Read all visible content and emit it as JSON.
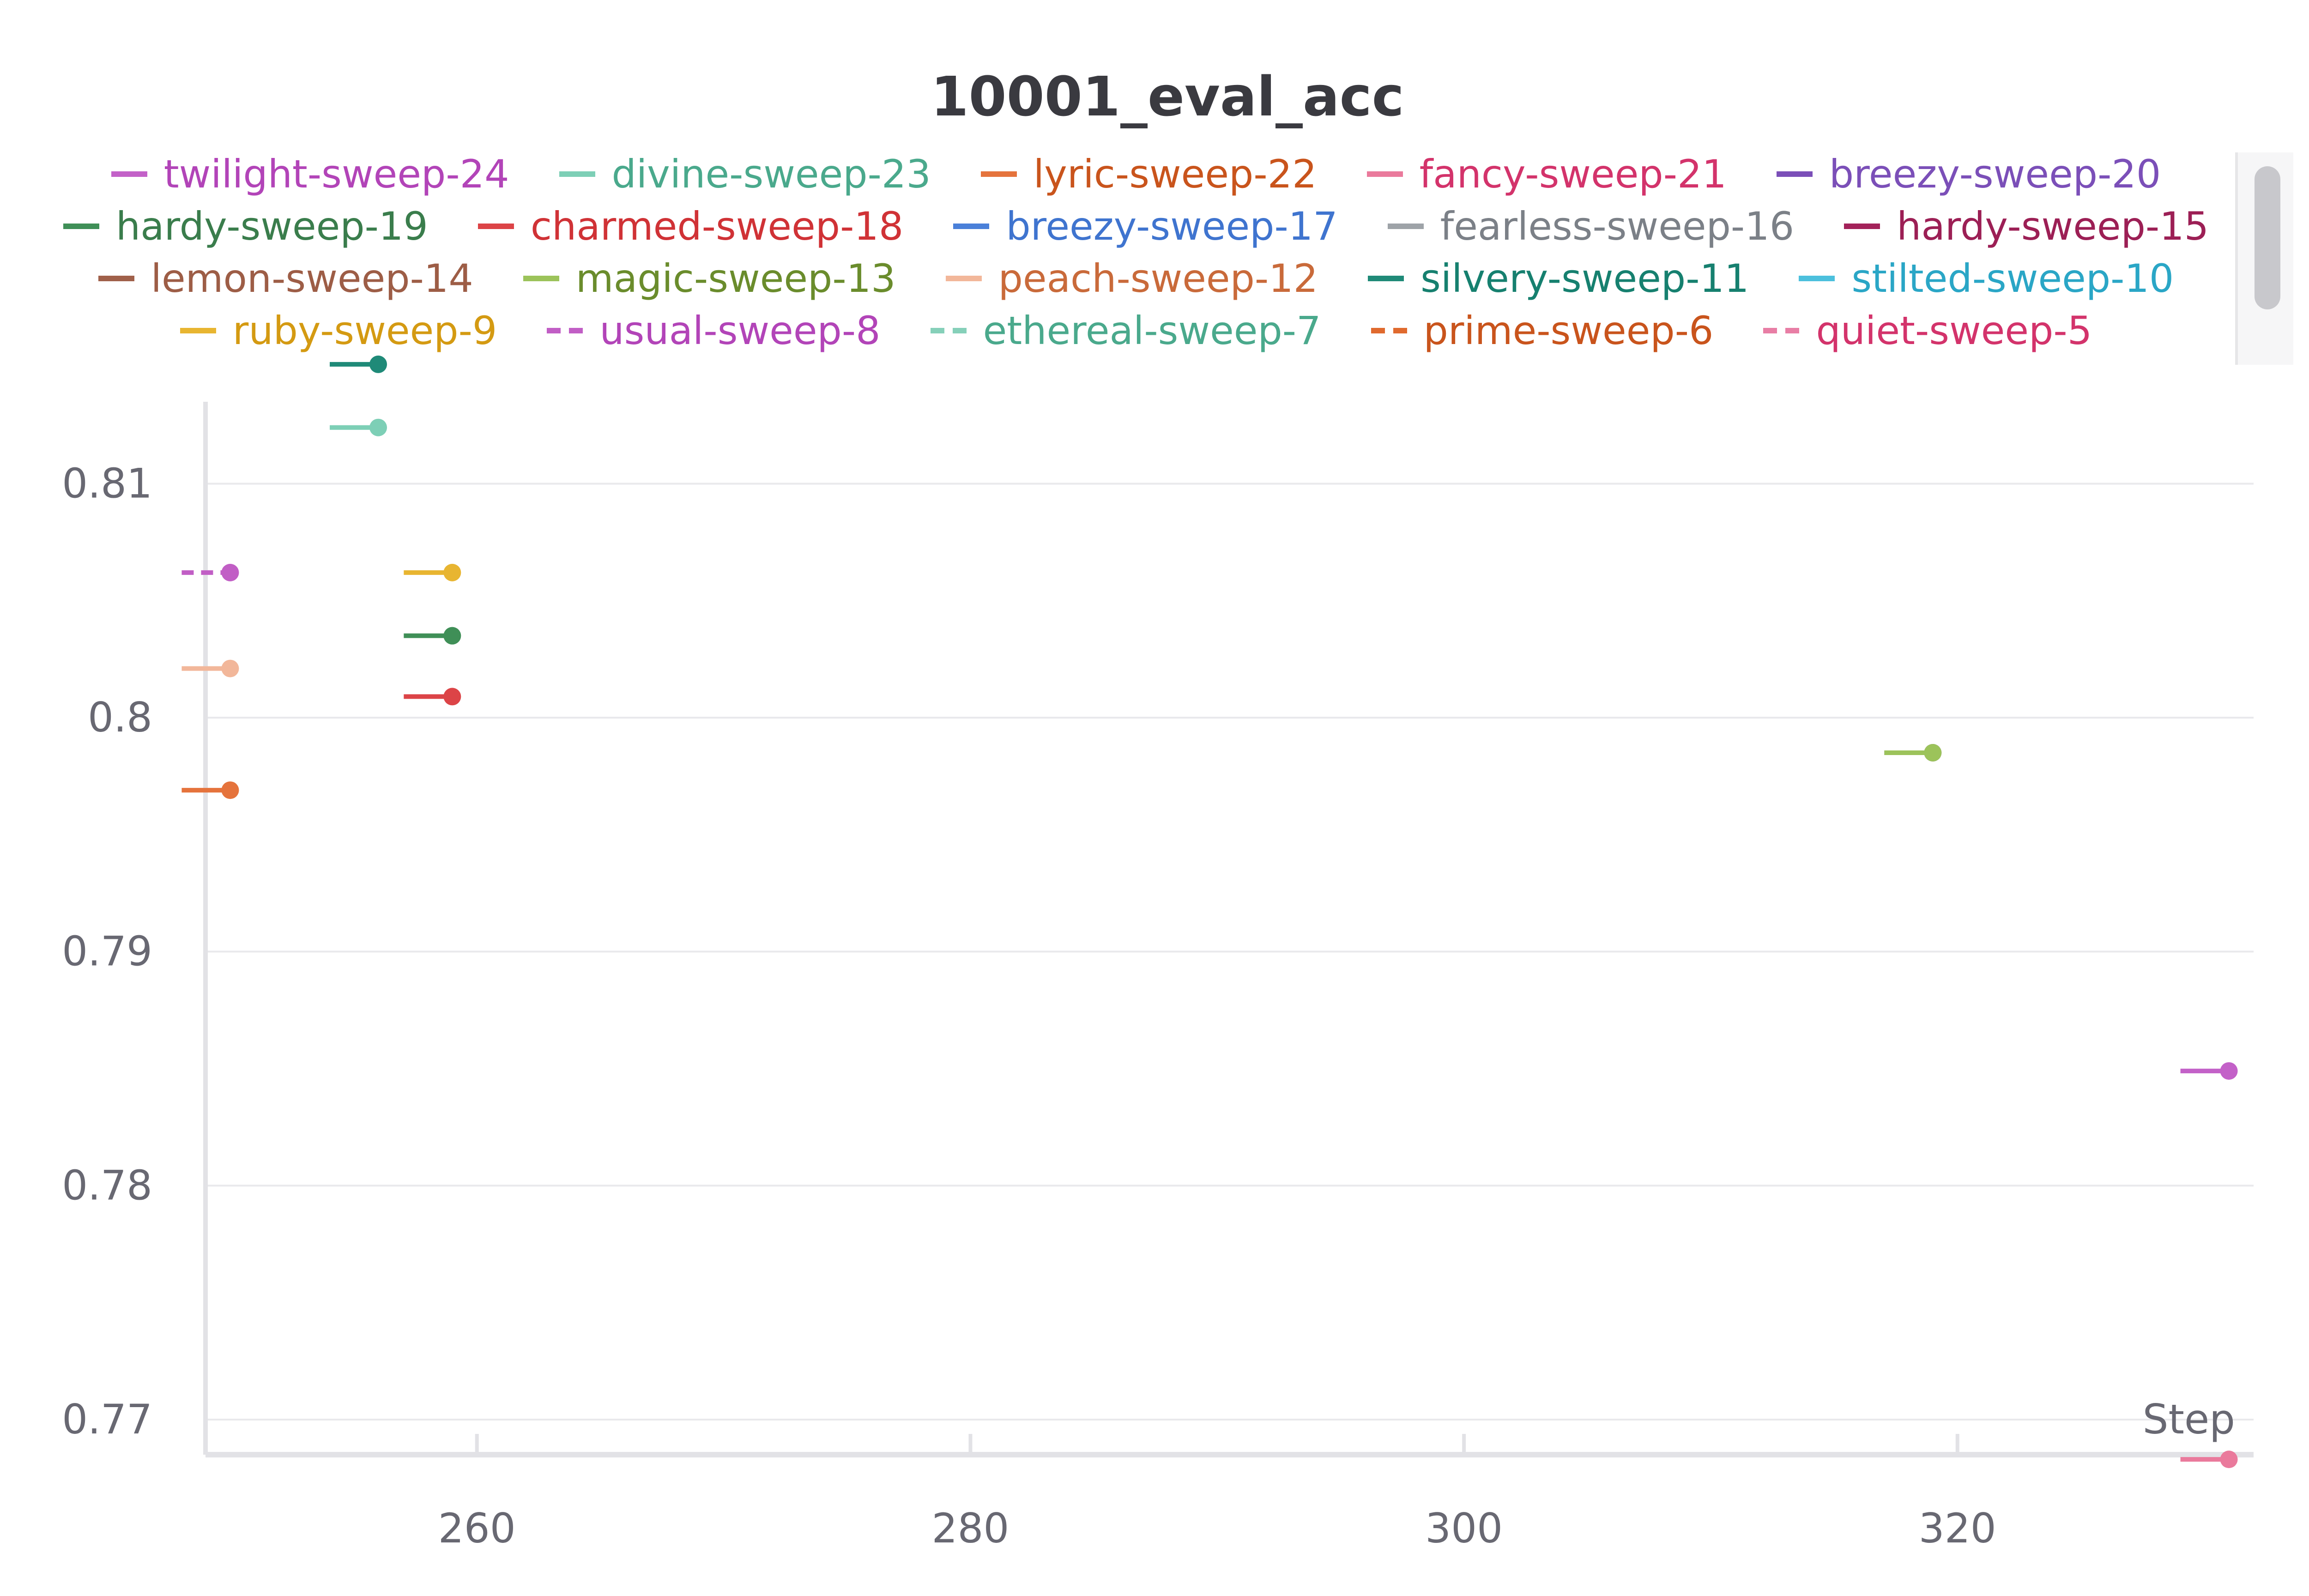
{
  "chart_data": {
    "type": "line",
    "title": "10001_eval_acc",
    "xlabel": "Step",
    "ylabel": "",
    "xlim": [
      249,
      332
    ],
    "ylim": [
      0.7685,
      0.8135
    ],
    "xticks": [
      260,
      280,
      300,
      320
    ],
    "yticks": [
      0.77,
      0.78,
      0.79,
      0.8,
      0.81
    ],
    "ytick_labels": [
      "0.77",
      "0.78",
      "0.79",
      "0.8",
      "0.81"
    ],
    "grid": true,
    "legend_position": "top",
    "series": [
      {
        "name": "twilight-sweep-24",
        "color": "#c361c8",
        "dash": false,
        "x": [
          331
        ],
        "y": [
          0.7849
        ]
      },
      {
        "name": "divine-sweep-23",
        "color": "#7dcfb6",
        "dash": false,
        "x": [
          256
        ],
        "y": [
          0.8124
        ]
      },
      {
        "name": "lyric-sweep-22",
        "color": "#e5733c",
        "dash": false,
        "x": [
          250
        ],
        "y": [
          0.7969
        ]
      },
      {
        "name": "fancy-sweep-21",
        "color": "#ea7a9c",
        "dash": false,
        "x": [
          331
        ],
        "y": [
          0.7683
        ]
      },
      {
        "name": "breezy-sweep-20",
        "color": "#7b4fb8",
        "dash": false,
        "x": [
          319
        ],
        "y": [
          0.7985
        ]
      },
      {
        "name": "hardy-sweep-19",
        "color": "#3f8f57",
        "dash": false,
        "x": [
          259
        ],
        "y": [
          0.8035
        ]
      },
      {
        "name": "charmed-sweep-18",
        "color": "#dc4447",
        "dash": false,
        "x": [
          259
        ],
        "y": [
          0.8009
        ]
      },
      {
        "name": "breezy-sweep-17",
        "color": "#4a80d9",
        "dash": false,
        "x": [],
        "y": []
      },
      {
        "name": "fearless-sweep-16",
        "color": "#9ea3a8",
        "dash": false,
        "x": [],
        "y": []
      },
      {
        "name": "hardy-sweep-15",
        "color": "#a3225a",
        "dash": false,
        "x": [],
        "y": []
      },
      {
        "name": "lemon-sweep-14",
        "color": "#a0604a",
        "dash": false,
        "x": [],
        "y": []
      },
      {
        "name": "magic-sweep-13",
        "color": "#9cc35a",
        "dash": false,
        "x": [
          319
        ],
        "y": [
          0.7985
        ]
      },
      {
        "name": "peach-sweep-12",
        "color": "#f2b79a",
        "dash": false,
        "x": [
          250
        ],
        "y": [
          0.8021
        ]
      },
      {
        "name": "silvery-sweep-11",
        "color": "#1f8a78",
        "dash": false,
        "x": [
          256
        ],
        "y": [
          0.8151
        ]
      },
      {
        "name": "stilted-sweep-10",
        "color": "#4cc0dd",
        "dash": false,
        "x": [],
        "y": []
      },
      {
        "name": "ruby-sweep-9",
        "color": "#e8b531",
        "dash": false,
        "x": [
          259
        ],
        "y": [
          0.8062
        ]
      },
      {
        "name": "usual-sweep-8",
        "color": "#c15ec5",
        "dash": true,
        "x": [
          250
        ],
        "y": [
          0.8062
        ]
      },
      {
        "name": "ethereal-sweep-7",
        "color": "#86d0b9",
        "dash": true,
        "x": [],
        "y": []
      },
      {
        "name": "prime-sweep-6",
        "color": "#e06a2e",
        "dash": true,
        "x": [],
        "y": []
      },
      {
        "name": "quiet-sweep-5",
        "color": "#e87ea5",
        "dash": true,
        "x": [],
        "y": []
      }
    ]
  },
  "legend_rows": [
    [
      {
        "label": "twilight-sweep-24",
        "color": "#c361c8",
        "text_color": "#b244b8",
        "dash": false
      },
      {
        "label": "divine-sweep-23",
        "color": "#7dcfb6",
        "text_color": "#4aa98c",
        "dash": false
      },
      {
        "label": "lyric-sweep-22",
        "color": "#e5733c",
        "text_color": "#c9541c",
        "dash": false
      },
      {
        "label": "fancy-sweep-21",
        "color": "#ea7a9c",
        "text_color": "#d3336b",
        "dash": false
      },
      {
        "label": "breezy-sweep-20",
        "color": "#7b4fb8",
        "text_color": "#7b4fb8",
        "dash": false
      }
    ],
    [
      {
        "label": "hardy-sweep-19",
        "color": "#3f8f57",
        "text_color": "#3a7d4c",
        "dash": false
      },
      {
        "label": "charmed-sweep-18",
        "color": "#dc4447",
        "text_color": "#d03236",
        "dash": false
      },
      {
        "label": "breezy-sweep-17",
        "color": "#4a80d9",
        "text_color": "#3f74cf",
        "dash": false
      },
      {
        "label": "fearless-sweep-16",
        "color": "#9ea3a8",
        "text_color": "#7b8087",
        "dash": false
      },
      {
        "label": "hardy-sweep-15",
        "color": "#a3225a",
        "text_color": "#9c1f55",
        "dash": false
      }
    ],
    [
      {
        "label": "lemon-sweep-14",
        "color": "#a0604a",
        "text_color": "#9d5d46",
        "dash": false
      },
      {
        "label": "magic-sweep-13",
        "color": "#9cc35a",
        "text_color": "#6a8c2c",
        "dash": false
      },
      {
        "label": "peach-sweep-12",
        "color": "#f2b79a",
        "text_color": "#c96a3a",
        "dash": false
      },
      {
        "label": "silvery-sweep-11",
        "color": "#1f8a78",
        "text_color": "#16806f",
        "dash": false
      },
      {
        "label": "stilted-sweep-10",
        "color": "#4cc0dd",
        "text_color": "#2aa6c6",
        "dash": false
      }
    ],
    [
      {
        "label": "ruby-sweep-9",
        "color": "#e8b531",
        "text_color": "#d49a12",
        "dash": false
      },
      {
        "label": "usual-sweep-8",
        "color": "#c15ec5",
        "text_color": "#b244b8",
        "dash": true
      },
      {
        "label": "ethereal-sweep-7",
        "color": "#86d0b9",
        "text_color": "#4aa98c",
        "dash": true
      },
      {
        "label": "prime-sweep-6",
        "color": "#e06a2e",
        "text_color": "#c9541c",
        "dash": true
      },
      {
        "label": "quiet-sweep-5",
        "color": "#e87ea5",
        "text_color": "#d3336b",
        "dash": true
      }
    ]
  ]
}
